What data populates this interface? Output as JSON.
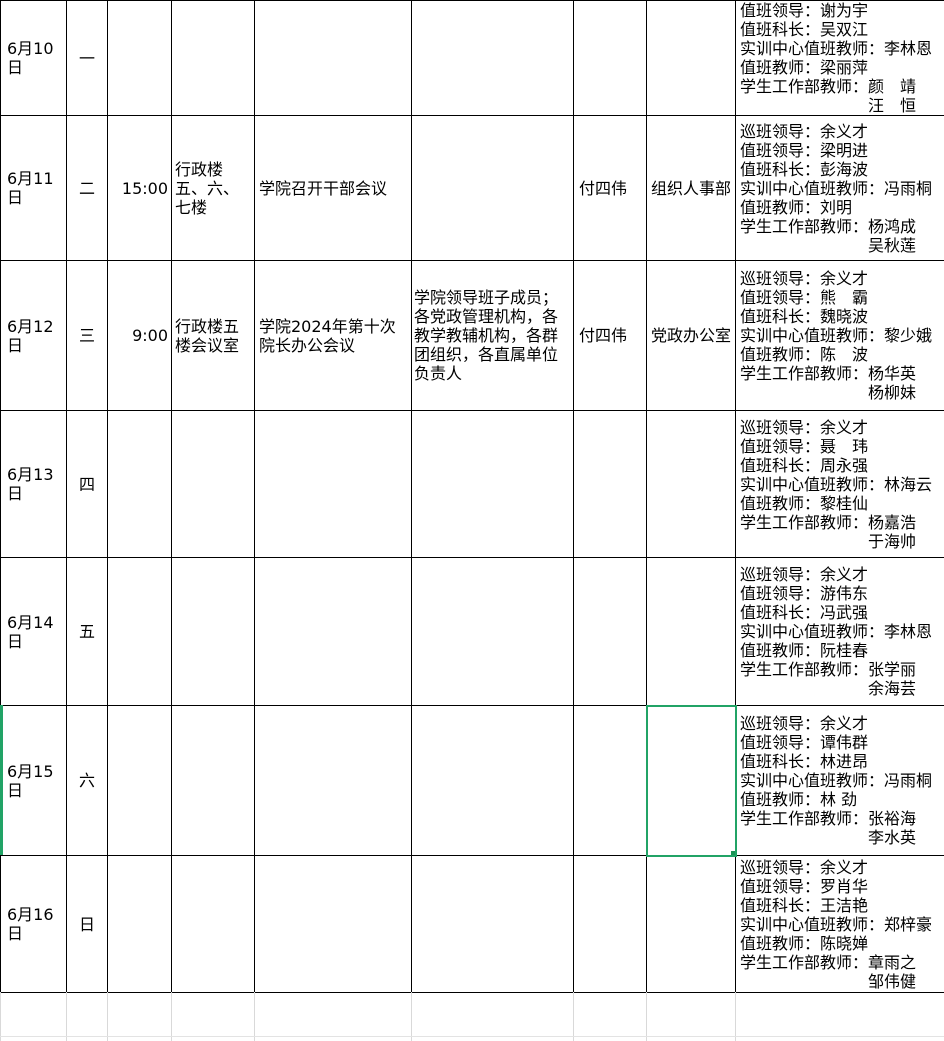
{
  "app": {
    "type": "spreadsheet-duty-schedule",
    "colors": {
      "selection_green": "#21A366",
      "gridline_black": "#000000",
      "gridline_faint": "#D9D9D9",
      "background": "#FFFFFF",
      "text": "#000000"
    }
  },
  "rows": [
    {
      "date": "6月10日",
      "day": "一",
      "time": "",
      "location": "",
      "event": "",
      "attendees": "",
      "person": "",
      "department": "",
      "duty": "值班领导：谢为宇\n值班科长：吴双江\n实训中心值班教师：李林恩\n值班教师：梁丽萍\n学生工作部教师：颜　靖\n　　　　　　　　汪　恒"
    },
    {
      "date": "6月11日",
      "day": "二",
      "time": "15:00",
      "location": "行政楼五、六、七楼",
      "event": "学院召开干部会议",
      "attendees": "",
      "person": "付四伟",
      "department": "组织人事部",
      "duty": "巡班领导：余义才\n值班领导：梁明进\n值班科长：彭海波\n实训中心值班教师：冯雨桐\n值班教师：刘明\n学生工作部教师：杨鸿成\n　　　　　　　　吴秋莲"
    },
    {
      "date": "6月12日",
      "day": "三",
      "time": "9:00",
      "location": "行政楼五楼会议室",
      "event": "学院2024年第十次院长办公会议",
      "attendees": "学院领导班子成员；各党政管理机构，各教学教辅机构，各群团组织，各直属单位负责人",
      "person": "付四伟",
      "department": "党政办公室",
      "duty": "巡班领导：余义才\n值班领导：熊　霸\n值班科长：魏晓波\n实训中心值班教师：黎少娥\n值班教师：陈　波\n学生工作部教师：杨华英\n　　　　　　　　杨柳妹"
    },
    {
      "date": "6月13日",
      "day": "四",
      "time": "",
      "location": "",
      "event": "",
      "attendees": "",
      "person": "",
      "department": "",
      "duty": "巡班领导：余义才\n值班领导：聂　玮\n值班科长：周永强\n实训中心值班教师：林海云\n值班教师：黎桂仙\n学生工作部教师：杨嘉浩\n　　　　　　　　于海帅"
    },
    {
      "date": "6月14日",
      "day": "五",
      "time": "",
      "location": "",
      "event": "",
      "attendees": "",
      "person": "",
      "department": "",
      "duty": "巡班领导：余义才\n值班领导：游伟东\n值班科长：冯武强\n实训中心值班教师：李林恩\n值班教师：阮桂春\n学生工作部教师：张学丽\n　　　　　　　　余海芸"
    },
    {
      "date": "6月15日",
      "day": "六",
      "time": "",
      "location": "",
      "event": "",
      "attendees": "",
      "person": "",
      "department": "",
      "duty": "巡班领导：余义才\n值班领导：谭伟群\n值班科长：林进昂\n实训中心值班教师：冯雨桐\n值班教师：林 劲\n学生工作部教师：张裕海\n　　　　　　　　李水英"
    },
    {
      "date": "6月16日",
      "day": "日",
      "time": "",
      "location": "",
      "event": "",
      "attendees": "",
      "person": "",
      "department": "",
      "duty": "巡班领导：余义才\n值班领导：罗肖华\n值班科长：王洁艳\n实训中心值班教师：郑梓豪\n值班教师：陈晓婵\n学生工作部教师：章雨之\n　　　　　　　　邹伟健"
    }
  ]
}
